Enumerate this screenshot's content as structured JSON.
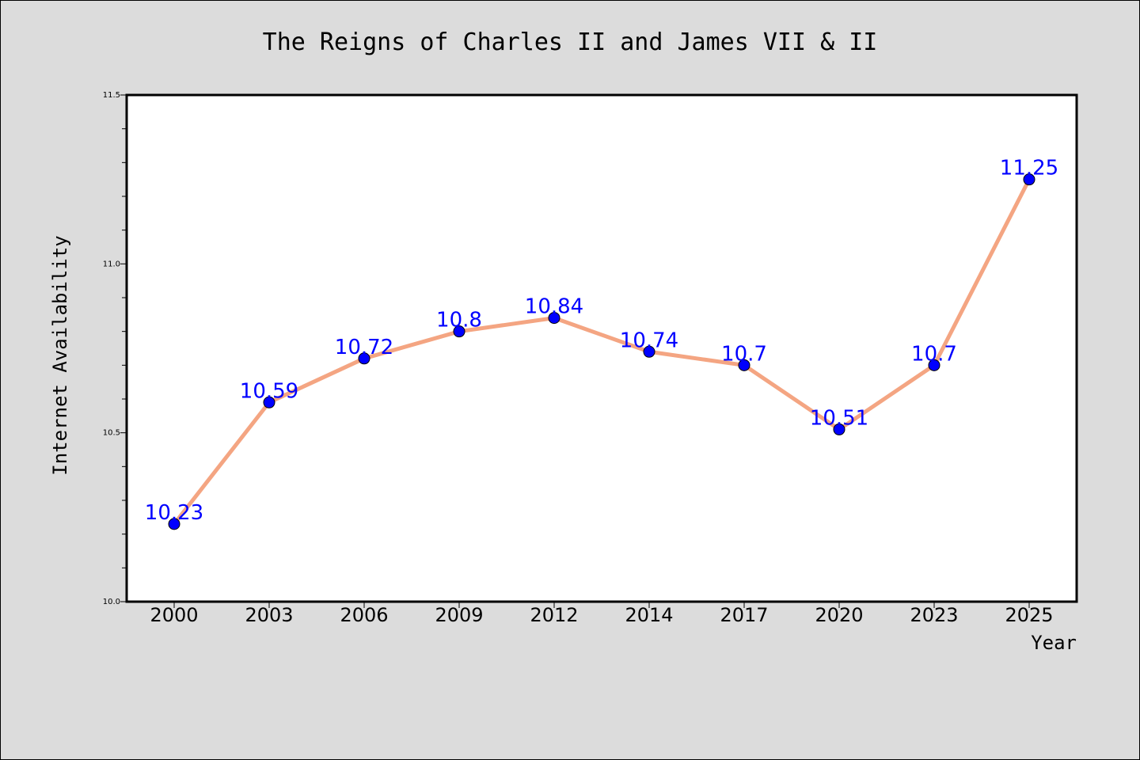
{
  "colors": {
    "background": "#dcdcdc",
    "plot_background": "#ffffff",
    "line": "#f4a582",
    "marker": "#0000ff",
    "data_label": "#0000ff"
  },
  "chart_data": {
    "type": "line",
    "title": "The Reigns of Charles II and James VII & II",
    "xlabel": "Year",
    "ylabel": "Internet Availability",
    "categories": [
      "2000",
      "2003",
      "2006",
      "2009",
      "2012",
      "2014",
      "2017",
      "2020",
      "2023",
      "2025"
    ],
    "series": [
      {
        "values": [
          10.23,
          10.59,
          10.72,
          10.8,
          10.84,
          10.74,
          10.7,
          10.51,
          10.7,
          11.25
        ],
        "labels": [
          "10.23",
          "10.59",
          "10.72",
          "10.8",
          "10.84",
          "10.74",
          "10.7",
          "10.51",
          "10.7",
          "11.25"
        ]
      }
    ],
    "ylim": [
      10.0,
      11.5
    ],
    "yticks": [
      "10.0",
      "10.5",
      "11.0",
      "11.5"
    ],
    "grid": false,
    "legend": "none"
  }
}
